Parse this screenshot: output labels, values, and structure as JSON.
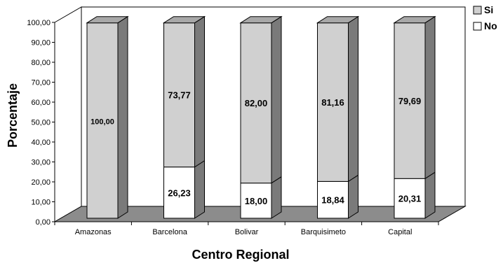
{
  "chart_data": {
    "type": "bar",
    "stacked": true,
    "three_d": true,
    "title": "",
    "xlabel": "Centro Regional",
    "ylabel": "Porcentaje",
    "ylim": [
      0,
      100
    ],
    "yticks": [
      "0,00",
      "10,00",
      "20,00",
      "30,00",
      "40,00",
      "50,00",
      "60,00",
      "70,00",
      "80,00",
      "90,00",
      "100,00"
    ],
    "categories": [
      "Amazonas",
      "Barcelona",
      "Bolivar",
      "Barquisimeto",
      "Capital"
    ],
    "series": [
      {
        "name": "No",
        "color": "#ffffff",
        "values": [
          0,
          26.23,
          18.0,
          18.84,
          20.31
        ],
        "labels": [
          "",
          "26,23",
          "18,00",
          "18,84",
          "20,31"
        ]
      },
      {
        "name": "Si",
        "color": "#d0d0d0",
        "values": [
          100.0,
          73.77,
          82.0,
          81.16,
          79.69
        ],
        "labels": [
          "100,00",
          "73,77",
          "82,00",
          "81,16",
          "79,69"
        ]
      }
    ],
    "legend": {
      "position": "top-right",
      "items": [
        "Si",
        "No"
      ]
    },
    "grid": false,
    "colors": {
      "floor": "#8c8c8c",
      "bar_side": "#7a7a7a",
      "bar_top": "#a8a8a8",
      "outline": "#000000"
    }
  }
}
